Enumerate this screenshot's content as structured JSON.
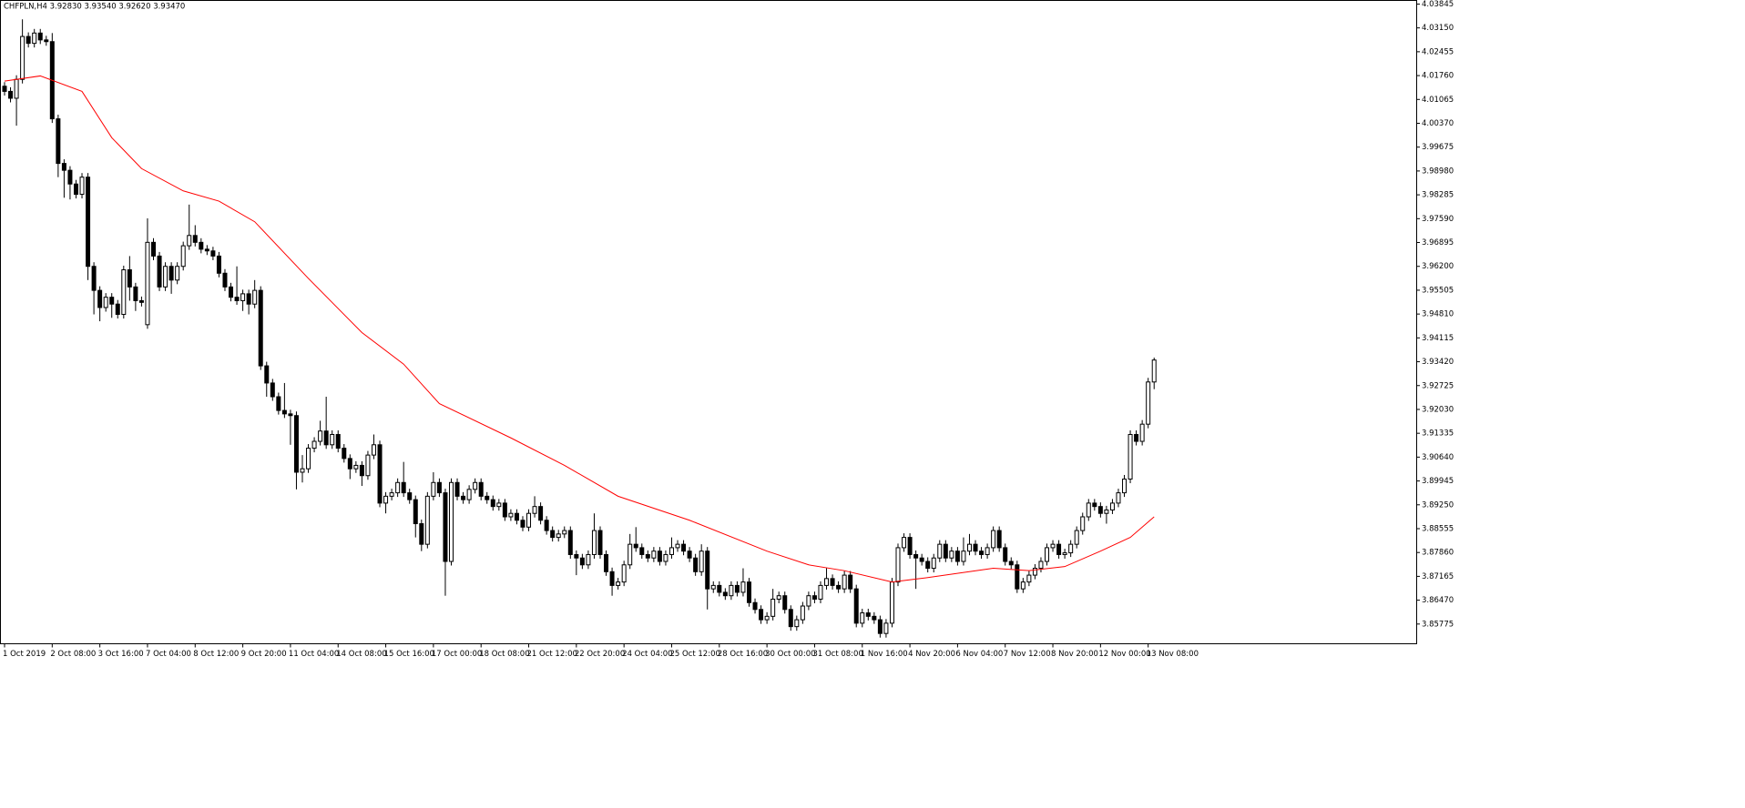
{
  "chart_data": {
    "type": "candlestick",
    "title": "CHFPLN,H4  3.92830 3.93540 3.92620 3.93470",
    "categories": [
      "1 Oct 2019",
      null,
      null,
      null,
      null,
      null,
      null,
      null,
      "2 Oct 08:00",
      null,
      null,
      null,
      null,
      null,
      null,
      null,
      "3 Oct 16:00",
      null,
      null,
      null,
      null,
      null,
      null,
      null,
      "7 Oct 04:00",
      null,
      null,
      null,
      null,
      null,
      null,
      null,
      "8 Oct 12:00",
      null,
      null,
      null,
      null,
      null,
      null,
      null,
      "9 Oct 20:00",
      null,
      null,
      null,
      null,
      null,
      null,
      null,
      "11 Oct 04:00",
      null,
      null,
      null,
      null,
      null,
      null,
      null,
      "14 Oct 08:00",
      null,
      null,
      null,
      null,
      null,
      null,
      null,
      "15 Oct 16:00",
      null,
      null,
      null,
      null,
      null,
      null,
      null,
      "17 Oct 00:00",
      null,
      null,
      null,
      null,
      null,
      null,
      null,
      "18 Oct 08:00",
      null,
      null,
      null,
      null,
      null,
      null,
      null,
      "21 Oct 12:00",
      null,
      null,
      null,
      null,
      null,
      null,
      null,
      "22 Oct 20:00",
      null,
      null,
      null,
      null,
      null,
      null,
      null,
      "24 Oct 04:00",
      null,
      null,
      null,
      null,
      null,
      null,
      null,
      "25 Oct 12:00",
      null,
      null,
      null,
      null,
      null,
      null,
      null,
      "28 Oct 16:00",
      null,
      null,
      null,
      null,
      null,
      null,
      null,
      "30 Oct 00:00",
      null,
      null,
      null,
      null,
      null,
      null,
      null,
      "31 Oct 08:00",
      null,
      null,
      null,
      null,
      null,
      null,
      null,
      "1 Nov 16:00",
      null,
      null,
      null,
      null,
      null,
      null,
      null,
      "4 Nov 20:00",
      null,
      null,
      null,
      null,
      null,
      null,
      null,
      "6 Nov 04:00",
      null,
      null,
      null,
      null,
      null,
      null,
      null,
      "7 Nov 12:00",
      null,
      null,
      null,
      null,
      null,
      null,
      null,
      "8 Nov 20:00",
      null,
      null,
      null,
      null,
      null,
      null,
      null,
      "12 Nov 00:00",
      null,
      null,
      null,
      null,
      null,
      null,
      null,
      "13 Nov 08:00",
      null
    ],
    "open": [
      4.0145,
      4.013,
      4.011,
      4.0165,
      4.029,
      4.027,
      4.03,
      4.028,
      4.0275,
      4.005,
      3.992,
      3.99,
      3.986,
      3.983,
      3.988,
      3.962,
      3.955,
      3.95,
      3.953,
      3.951,
      3.948,
      3.961,
      3.956,
      3.952,
      3.945,
      3.969,
      3.965,
      3.956,
      3.962,
      3.958,
      3.962,
      3.968,
      3.971,
      3.969,
      3.967,
      3.9665,
      3.965,
      3.96,
      3.956,
      3.953,
      3.952,
      3.954,
      3.951,
      3.955,
      3.933,
      3.928,
      3.924,
      3.92,
      3.919,
      3.9185,
      3.902,
      3.903,
      3.909,
      3.911,
      3.914,
      3.91,
      3.913,
      3.909,
      3.906,
      3.903,
      3.904,
      3.901,
      3.907,
      3.91,
      3.893,
      3.895,
      3.896,
      3.899,
      3.896,
      3.894,
      3.887,
      3.881,
      3.895,
      3.899,
      3.896,
      3.876,
      3.899,
      3.895,
      3.894,
      3.897,
      3.899,
      3.895,
      3.894,
      3.892,
      3.893,
      3.889,
      3.89,
      3.888,
      3.886,
      3.89,
      3.892,
      3.888,
      3.885,
      3.883,
      3.884,
      3.885,
      3.878,
      3.877,
      3.875,
      3.878,
      3.885,
      3.878,
      3.873,
      3.869,
      3.87,
      3.875,
      3.881,
      3.88,
      3.878,
      3.877,
      3.879,
      3.876,
      3.878,
      3.88,
      3.881,
      3.879,
      3.877,
      3.873,
      3.879,
      3.868,
      3.869,
      3.867,
      3.866,
      3.869,
      3.867,
      3.87,
      3.864,
      3.862,
      3.859,
      3.86,
      3.865,
      3.866,
      3.862,
      3.857,
      3.859,
      3.863,
      3.866,
      3.865,
      3.869,
      3.871,
      3.869,
      3.868,
      3.872,
      3.868,
      3.858,
      3.861,
      3.86,
      3.859,
      3.855,
      3.858,
      3.87,
      3.88,
      3.883,
      3.878,
      3.877,
      3.876,
      3.874,
      3.877,
      3.881,
      3.877,
      3.879,
      3.876,
      3.879,
      3.881,
      3.879,
      3.878,
      3.88,
      3.885,
      3.88,
      3.876,
      3.875,
      3.868,
      3.87,
      3.872,
      3.874,
      3.876,
      3.88,
      3.881,
      3.878,
      3.8785,
      3.881,
      3.885,
      3.889,
      3.893,
      3.892,
      3.89,
      3.891,
      3.893,
      3.896,
      3.9,
      3.913,
      3.911,
      3.916,
      3.9283
    ],
    "high": [
      4.0157,
      4.0142,
      4.0177,
      4.034,
      4.0302,
      4.0312,
      4.0312,
      4.0292,
      4.03,
      4.0062,
      3.9932,
      3.9912,
      3.9872,
      3.9892,
      3.9892,
      3.9632,
      3.9562,
      3.9542,
      3.9542,
      3.9522,
      3.9622,
      3.965,
      3.9572,
      3.9532,
      3.976,
      3.9702,
      3.9662,
      3.9632,
      3.9632,
      3.9632,
      3.9692,
      3.98,
      3.974,
      3.9702,
      3.9682,
      3.9677,
      3.9662,
      3.9612,
      3.9572,
      3.962,
      3.9552,
      3.9552,
      3.958,
      3.9562,
      3.9342,
      3.9292,
      3.9252,
      3.928,
      3.9202,
      3.9197,
      3.907,
      3.9102,
      3.9122,
      3.917,
      3.924,
      3.9142,
      3.9142,
      3.9102,
      3.9072,
      3.9052,
      3.9052,
      3.9082,
      3.913,
      3.9112,
      3.8962,
      3.8972,
      3.9002,
      3.905,
      3.8972,
      3.8952,
      3.8882,
      3.8962,
      3.902,
      3.9002,
      3.8972,
      3.9002,
      3.9002,
      3.8962,
      3.8982,
      3.9002,
      3.9002,
      3.8962,
      3.8952,
      3.8942,
      3.8942,
      3.8912,
      3.8912,
      3.8892,
      3.8912,
      3.895,
      3.8932,
      3.8892,
      3.8862,
      3.8852,
      3.8862,
      3.8862,
      3.8792,
      3.8782,
      3.8792,
      3.89,
      3.8862,
      3.8792,
      3.8742,
      3.8712,
      3.8762,
      3.884,
      3.886,
      3.8812,
      3.8792,
      3.8802,
      3.8802,
      3.8792,
      3.883,
      3.8822,
      3.8822,
      3.8802,
      3.8782,
      3.881,
      3.8802,
      3.8702,
      3.8702,
      3.8682,
      3.8702,
      3.8702,
      3.874,
      3.8712,
      3.8652,
      3.8632,
      3.8612,
      3.868,
      3.8672,
      3.8672,
      3.8632,
      3.8602,
      3.8642,
      3.8672,
      3.8672,
      3.8702,
      3.874,
      3.8722,
      3.8702,
      3.8732,
      3.8732,
      3.8692,
      3.8622,
      3.8622,
      3.8612,
      3.8602,
      3.8592,
      3.8712,
      3.8812,
      3.8842,
      3.8842,
      3.8792,
      3.8782,
      3.8772,
      3.8782,
      3.8822,
      3.8822,
      3.8802,
      3.8802,
      3.883,
      3.884,
      3.8822,
      3.8802,
      3.8812,
      3.8862,
      3.8862,
      3.8812,
      3.8772,
      3.8762,
      3.8712,
      3.8732,
      3.8752,
      3.8772,
      3.8812,
      3.8822,
      3.8822,
      3.8797,
      3.8822,
      3.8862,
      3.8902,
      3.8942,
      3.8942,
      3.8932,
      3.8922,
      3.8942,
      3.8972,
      3.9012,
      3.9142,
      3.9142,
      3.9172,
      3.9295,
      3.9354
    ],
    "low": [
      4.0118,
      4.0098,
      4.003,
      4.0153,
      4.0258,
      4.0258,
      4.0268,
      4.0263,
      4.0038,
      3.988,
      3.982,
      3.9815,
      3.9818,
      3.9818,
      3.958,
      3.948,
      3.946,
      3.9488,
      3.947,
      3.9468,
      3.9468,
      3.952,
      3.949,
      3.9503,
      3.9438,
      3.9638,
      3.9548,
      3.9548,
      3.954,
      3.9568,
      3.9608,
      3.9668,
      3.9678,
      3.9658,
      3.9653,
      3.9638,
      3.9588,
      3.9548,
      3.9518,
      3.9508,
      3.949,
      3.948,
      3.9498,
      3.9318,
      3.924,
      3.9228,
      3.9188,
      3.9178,
      3.91,
      3.897,
      3.899,
      3.9018,
      3.9078,
      3.9098,
      3.9088,
      3.9088,
      3.9078,
      3.9048,
      3.9,
      3.9018,
      3.898,
      3.8998,
      3.9058,
      3.8918,
      3.89,
      3.8938,
      3.8948,
      3.8948,
      3.8928,
      3.883,
      3.879,
      3.8798,
      3.8938,
      3.8948,
      3.866,
      3.8748,
      3.8938,
      3.8928,
      3.8928,
      3.8958,
      3.8938,
      3.8928,
      3.8908,
      3.8908,
      3.8878,
      3.8878,
      3.8868,
      3.8848,
      3.8848,
      3.8888,
      3.8868,
      3.8838,
      3.8818,
      3.8818,
      3.8828,
      3.8768,
      3.872,
      3.8738,
      3.8738,
      3.8768,
      3.8768,
      3.8718,
      3.866,
      3.8678,
      3.8688,
      3.8738,
      3.8788,
      3.8768,
      3.8758,
      3.8758,
      3.8748,
      3.8748,
      3.8768,
      3.8788,
      3.8778,
      3.8758,
      3.8718,
      3.8718,
      3.862,
      3.8668,
      3.8658,
      3.8648,
      3.8648,
      3.8658,
      3.8658,
      3.8628,
      3.8608,
      3.8578,
      3.8578,
      3.8588,
      3.8638,
      3.8608,
      3.8558,
      3.8558,
      3.8578,
      3.8618,
      3.8638,
      3.8638,
      3.8678,
      3.8678,
      3.8668,
      3.8668,
      3.8668,
      3.8568,
      3.8568,
      3.8588,
      3.8578,
      3.8538,
      3.8538,
      3.8568,
      3.8688,
      3.8788,
      3.8768,
      3.868,
      3.8748,
      3.8728,
      3.8728,
      3.8758,
      3.8758,
      3.8758,
      3.8748,
      3.8748,
      3.8778,
      3.8778,
      3.8768,
      3.8768,
      3.8788,
      3.8788,
      3.8748,
      3.8738,
      3.8668,
      3.8668,
      3.8688,
      3.8708,
      3.8728,
      3.8748,
      3.8788,
      3.8768,
      3.8768,
      3.8773,
      3.8798,
      3.8838,
      3.8878,
      3.8908,
      3.8888,
      3.887,
      3.8898,
      3.8918,
      3.8948,
      3.8988,
      3.9098,
      3.9098,
      3.9148,
      3.9262
    ],
    "close": [
      4.013,
      4.011,
      4.0165,
      4.029,
      4.027,
      4.03,
      4.028,
      4.0275,
      4.005,
      3.992,
      3.99,
      3.986,
      3.983,
      3.988,
      3.962,
      3.955,
      3.95,
      3.953,
      3.951,
      3.948,
      3.961,
      3.956,
      3.952,
      3.9515,
      3.969,
      3.965,
      3.956,
      3.962,
      3.958,
      3.962,
      3.968,
      3.971,
      3.969,
      3.967,
      3.9665,
      3.965,
      3.96,
      3.956,
      3.953,
      3.952,
      3.954,
      3.951,
      3.955,
      3.933,
      3.928,
      3.924,
      3.92,
      3.919,
      3.9185,
      3.902,
      3.903,
      3.909,
      3.911,
      3.914,
      3.91,
      3.913,
      3.909,
      3.906,
      3.903,
      3.904,
      3.901,
      3.907,
      3.91,
      3.893,
      3.895,
      3.896,
      3.899,
      3.896,
      3.894,
      3.887,
      3.881,
      3.895,
      3.899,
      3.896,
      3.876,
      3.899,
      3.895,
      3.894,
      3.897,
      3.899,
      3.895,
      3.894,
      3.892,
      3.893,
      3.889,
      3.89,
      3.888,
      3.886,
      3.89,
      3.892,
      3.888,
      3.885,
      3.883,
      3.884,
      3.885,
      3.878,
      3.877,
      3.875,
      3.878,
      3.885,
      3.878,
      3.873,
      3.869,
      3.87,
      3.875,
      3.881,
      3.88,
      3.878,
      3.877,
      3.879,
      3.876,
      3.878,
      3.88,
      3.881,
      3.879,
      3.877,
      3.873,
      3.879,
      3.868,
      3.869,
      3.867,
      3.866,
      3.869,
      3.867,
      3.87,
      3.864,
      3.862,
      3.859,
      3.86,
      3.865,
      3.866,
      3.862,
      3.857,
      3.859,
      3.863,
      3.866,
      3.865,
      3.869,
      3.871,
      3.869,
      3.868,
      3.872,
      3.868,
      3.858,
      3.861,
      3.86,
      3.859,
      3.855,
      3.858,
      3.87,
      3.88,
      3.883,
      3.878,
      3.877,
      3.876,
      3.874,
      3.877,
      3.881,
      3.877,
      3.879,
      3.876,
      3.879,
      3.881,
      3.879,
      3.878,
      3.88,
      3.885,
      3.88,
      3.876,
      3.875,
      3.868,
      3.87,
      3.872,
      3.874,
      3.876,
      3.88,
      3.881,
      3.878,
      3.8785,
      3.881,
      3.885,
      3.889,
      3.893,
      3.892,
      3.89,
      3.891,
      3.893,
      3.896,
      3.9,
      3.913,
      3.911,
      3.916,
      3.9283,
      3.9347
    ],
    "up_color": "#ffffff",
    "down_color": "#000000",
    "ma": {
      "color": "#ff0000",
      "x": [
        0,
        6,
        13,
        18,
        23,
        30,
        36,
        42,
        51,
        60,
        67,
        73,
        85,
        94,
        103,
        115,
        128,
        135,
        141,
        149,
        155,
        166,
        172,
        178,
        184,
        189,
        193
      ],
      "values": [
        4.016,
        4.0175,
        4.013,
        3.9995,
        3.9905,
        3.984,
        3.981,
        3.975,
        3.9585,
        3.9427,
        3.9335,
        3.922,
        3.912,
        3.904,
        3.895,
        3.888,
        3.879,
        3.875,
        3.8733,
        3.87,
        3.8713,
        3.874,
        3.8733,
        3.8745,
        3.879,
        3.883,
        3.889
      ]
    },
    "ylim": [
      3.852,
      4.0395
    ],
    "yticks": [
      4.03845,
      {
        "value": 4.0315,
        "label": "4.03150"
      },
      4.02455,
      {
        "value": 4.0176,
        "label": "4.01760"
      },
      4.01065,
      {
        "value": 4.0037,
        "label": "4.00370"
      },
      3.99675,
      {
        "value": 3.9898,
        "label": "3.98980"
      },
      3.98285,
      {
        "value": 3.9759,
        "label": "3.97590"
      },
      3.96895,
      {
        "value": 3.962,
        "label": "3.96200"
      },
      3.95505,
      {
        "value": 3.9481,
        "label": "3.94810"
      },
      3.94115,
      {
        "value": 3.9342,
        "label": "3.93420"
      },
      3.92725,
      {
        "value": 3.9203,
        "label": "3.92030"
      },
      3.91335,
      {
        "value": 3.9064,
        "label": "3.90640"
      },
      3.89945,
      {
        "value": 3.8925,
        "label": "3.89250"
      },
      3.88555,
      {
        "value": 3.8786,
        "label": "3.87860"
      },
      3.87165,
      {
        "value": 3.8647,
        "label": "3.86470"
      },
      3.85775
    ]
  }
}
